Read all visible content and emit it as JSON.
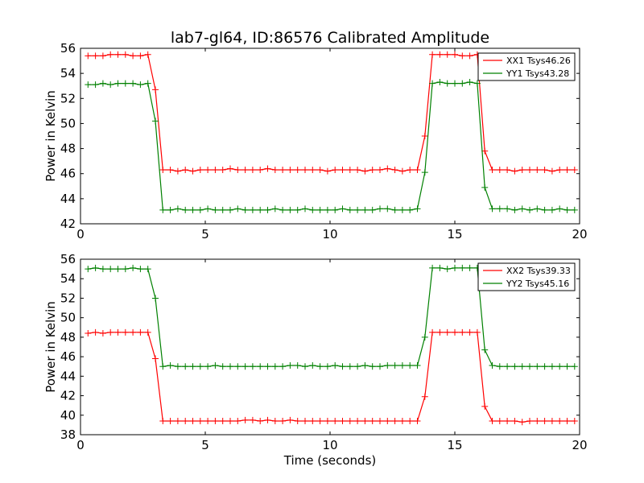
{
  "figure": {
    "title": "lab7-gl64, ID:86576 Calibrated Amplitude",
    "xlabel": "Time (seconds)"
  },
  "chart_data": [
    {
      "type": "line",
      "title": "lab7-gl64, ID:86576 Calibrated Amplitude",
      "xlabel": "",
      "ylabel": "Power in Kelvin",
      "xlim": [
        0,
        20
      ],
      "ylim": [
        42,
        56
      ],
      "xticks": [
        0,
        5,
        10,
        15,
        20
      ],
      "yticks": [
        42,
        44,
        46,
        48,
        50,
        52,
        54,
        56
      ],
      "legend_position": "top-right",
      "marker": "+",
      "x": [
        0.3,
        0.6,
        0.9,
        1.2,
        1.5,
        1.8,
        2.1,
        2.4,
        2.7,
        3.0,
        3.3,
        3.6,
        3.9,
        4.2,
        4.5,
        4.8,
        5.1,
        5.4,
        5.7,
        6.0,
        6.3,
        6.6,
        6.9,
        7.2,
        7.5,
        7.8,
        8.1,
        8.4,
        8.7,
        9.0,
        9.3,
        9.6,
        9.9,
        10.2,
        10.5,
        10.8,
        11.1,
        11.4,
        11.7,
        12.0,
        12.3,
        12.6,
        12.9,
        13.2,
        13.5,
        13.8,
        14.1,
        14.4,
        14.7,
        15.0,
        15.3,
        15.6,
        15.9,
        16.2,
        16.5,
        16.8,
        17.1,
        17.4,
        17.7,
        18.0,
        18.3,
        18.6,
        18.9,
        19.2,
        19.5,
        19.8
      ],
      "series": [
        {
          "name": "XX1 Tsys46.26",
          "color": "#ff0000",
          "values": [
            55.4,
            55.4,
            55.4,
            55.5,
            55.5,
            55.5,
            55.4,
            55.4,
            55.5,
            52.7,
            46.3,
            46.3,
            46.2,
            46.3,
            46.2,
            46.3,
            46.3,
            46.3,
            46.3,
            46.4,
            46.3,
            46.3,
            46.3,
            46.3,
            46.4,
            46.3,
            46.3,
            46.3,
            46.3,
            46.3,
            46.3,
            46.3,
            46.2,
            46.3,
            46.3,
            46.3,
            46.3,
            46.2,
            46.3,
            46.3,
            46.4,
            46.3,
            46.2,
            46.3,
            46.3,
            49.0,
            55.5,
            55.5,
            55.5,
            55.5,
            55.4,
            55.4,
            55.5,
            47.8,
            46.3,
            46.3,
            46.3,
            46.2,
            46.3,
            46.3,
            46.3,
            46.3,
            46.2,
            46.3,
            46.3,
            46.3
          ]
        },
        {
          "name": "YY1 Tsys43.28",
          "color": "#008000",
          "values": [
            53.1,
            53.1,
            53.2,
            53.1,
            53.2,
            53.2,
            53.2,
            53.1,
            53.2,
            50.2,
            43.1,
            43.1,
            43.2,
            43.1,
            43.1,
            43.1,
            43.2,
            43.1,
            43.1,
            43.1,
            43.2,
            43.1,
            43.1,
            43.1,
            43.1,
            43.2,
            43.1,
            43.1,
            43.1,
            43.2,
            43.1,
            43.1,
            43.1,
            43.1,
            43.2,
            43.1,
            43.1,
            43.1,
            43.1,
            43.2,
            43.2,
            43.1,
            43.1,
            43.1,
            43.2,
            46.1,
            53.2,
            53.3,
            53.2,
            53.2,
            53.2,
            53.3,
            53.2,
            44.9,
            43.2,
            43.2,
            43.2,
            43.1,
            43.2,
            43.1,
            43.2,
            43.1,
            43.1,
            43.2,
            43.1,
            43.1
          ]
        }
      ]
    },
    {
      "type": "line",
      "title": "",
      "xlabel": "Time (seconds)",
      "ylabel": "Power in Kelvin",
      "xlim": [
        0,
        20
      ],
      "ylim": [
        38,
        56
      ],
      "xticks": [
        0,
        5,
        10,
        15,
        20
      ],
      "yticks": [
        38,
        40,
        42,
        44,
        46,
        48,
        50,
        52,
        54,
        56
      ],
      "legend_position": "top-right",
      "marker": "+",
      "x": [
        0.3,
        0.6,
        0.9,
        1.2,
        1.5,
        1.8,
        2.1,
        2.4,
        2.7,
        3.0,
        3.3,
        3.6,
        3.9,
        4.2,
        4.5,
        4.8,
        5.1,
        5.4,
        5.7,
        6.0,
        6.3,
        6.6,
        6.9,
        7.2,
        7.5,
        7.8,
        8.1,
        8.4,
        8.7,
        9.0,
        9.3,
        9.6,
        9.9,
        10.2,
        10.5,
        10.8,
        11.1,
        11.4,
        11.7,
        12.0,
        12.3,
        12.6,
        12.9,
        13.2,
        13.5,
        13.8,
        14.1,
        14.4,
        14.7,
        15.0,
        15.3,
        15.6,
        15.9,
        16.2,
        16.5,
        16.8,
        17.1,
        17.4,
        17.7,
        18.0,
        18.3,
        18.6,
        18.9,
        19.2,
        19.5,
        19.8
      ],
      "series": [
        {
          "name": "XX2 Tsys39.33",
          "color": "#ff0000",
          "values": [
            48.4,
            48.5,
            48.4,
            48.5,
            48.5,
            48.5,
            48.5,
            48.5,
            48.5,
            45.8,
            39.4,
            39.4,
            39.4,
            39.4,
            39.4,
            39.4,
            39.4,
            39.4,
            39.4,
            39.4,
            39.4,
            39.5,
            39.5,
            39.4,
            39.5,
            39.4,
            39.4,
            39.5,
            39.4,
            39.4,
            39.4,
            39.4,
            39.4,
            39.4,
            39.4,
            39.4,
            39.4,
            39.4,
            39.4,
            39.4,
            39.4,
            39.4,
            39.4,
            39.4,
            39.4,
            41.9,
            48.5,
            48.5,
            48.5,
            48.5,
            48.5,
            48.5,
            48.5,
            40.9,
            39.4,
            39.4,
            39.4,
            39.4,
            39.3,
            39.4,
            39.4,
            39.4,
            39.4,
            39.4,
            39.4,
            39.4
          ]
        },
        {
          "name": "YY2 Tsys45.16",
          "color": "#008000",
          "values": [
            55.0,
            55.1,
            55.0,
            55.0,
            55.0,
            55.0,
            55.1,
            55.0,
            55.0,
            52.0,
            45.0,
            45.1,
            45.0,
            45.0,
            45.0,
            45.0,
            45.0,
            45.1,
            45.0,
            45.0,
            45.0,
            45.0,
            45.0,
            45.0,
            45.0,
            45.0,
            45.0,
            45.1,
            45.1,
            45.0,
            45.1,
            45.0,
            45.0,
            45.1,
            45.0,
            45.0,
            45.0,
            45.1,
            45.0,
            45.0,
            45.1,
            45.1,
            45.1,
            45.1,
            45.1,
            48.0,
            55.1,
            55.1,
            55.0,
            55.1,
            55.1,
            55.1,
            55.1,
            46.7,
            45.1,
            45.0,
            45.0,
            45.0,
            45.0,
            45.0,
            45.0,
            45.0,
            45.0,
            45.0,
            45.0,
            45.0
          ]
        }
      ]
    }
  ]
}
